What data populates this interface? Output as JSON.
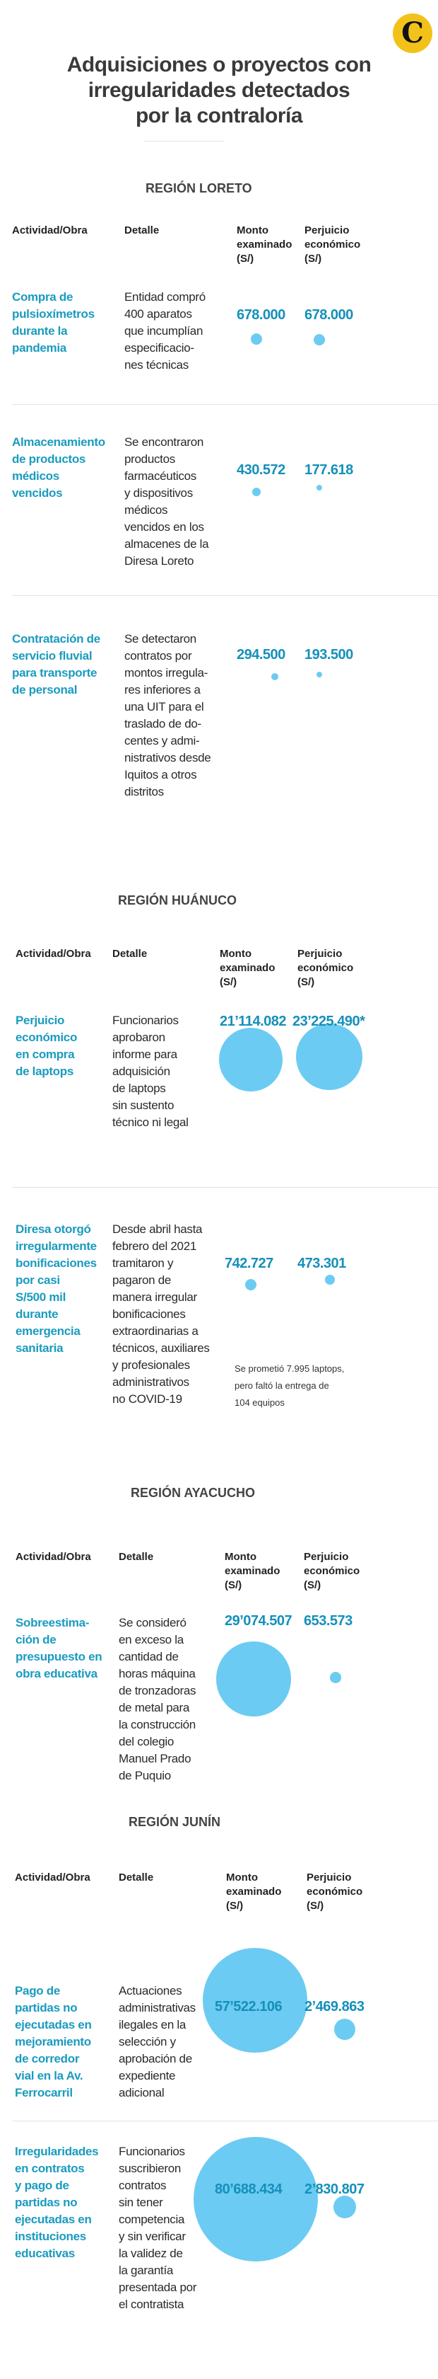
{
  "logo": {
    "letter": "C"
  },
  "title": "Adquisiciones o proyectos con\nirregularidades detectados\npor la contraloría",
  "colors": {
    "activity": "#1a9bbf",
    "value": "#1490ba",
    "bubble": "#6ccbf2",
    "logo": "#f2c21a"
  },
  "chart_data": {
    "type": "bubble-table",
    "title": "Adquisiciones o proyectos con irregularidades detectados por la contraloría",
    "headers": [
      "Actividad/Obra",
      "Detalle",
      "Monto\nexaminado\n(S/)",
      "Perjuicio\neconómico\n(S/)"
    ],
    "sections": [
      {
        "region": "REGIÓN LORETO",
        "rows": [
          {
            "activity": "Compra de\npulsioxímetros\ndurante la\npandemia",
            "detail": "Entidad compró\n400 aparatos\nque incumplían\nespecificacio-\nnes técnicas",
            "monto_label": "678.000",
            "perjuicio_label": "678.000",
            "monto": 678000,
            "perjuicio": 678000
          },
          {
            "activity": "Almacenamiento\nde productos\nmédicos\nvencidos",
            "detail": "Se encontraron\nproductos\nfarmacéuticos\ny dispositivos\nmédicos\nvencidos en los\nalmacenes de la\nDiresa Loreto",
            "monto_label": "430.572",
            "perjuicio_label": "177.618",
            "monto": 430572,
            "perjuicio": 177618
          },
          {
            "activity": "Contratación de\nservicio fluvial\npara transporte\nde personal",
            "detail": "Se detectaron\ncontratos por\nmontos irregula-\nres inferiores a\nuna UIT para el\ntraslado de do-\ncentes y admi-\nnistrativos desde\nIquitos a otros\ndistritos",
            "monto_label": "294.500",
            "perjuicio_label": "193.500",
            "monto": 294500,
            "perjuicio": 193500
          }
        ]
      },
      {
        "region": "REGIÓN HUÁNUCO",
        "rows": [
          {
            "activity": "Perjuicio\neconómico\nen compra\nde laptops",
            "detail": "Funcionarios\naprobaron\ninforme para\nadquisición\nde laptops\nsin sustento\ntécnico ni legal",
            "monto_label": "21’114.082",
            "perjuicio_label": "23’225.490*",
            "monto": 21114082,
            "perjuicio": 23225490
          },
          {
            "activity": "Diresa otorgó\nirregularmente\nbonificaciones\npor casi\nS/500 mil\ndurante\nemergencia\nsanitaria",
            "detail": "Desde abril hasta\nfebrero del 2021\ntramitaron y\npagaron de\nmanera irregular\nbonificaciones\nextraordinarias a\ntécnicos, auxiliares\ny profesionales\nadministrativos\nno COVID-19",
            "monto_label": "742.727",
            "perjuicio_label": "473.301",
            "monto": 742727,
            "perjuicio": 473301
          }
        ],
        "note": "Se prometió 7.995 laptops,\npero faltó la entrega de\n104 equipos"
      },
      {
        "region": "REGIÓN AYACUCHO",
        "rows": [
          {
            "activity": "Sobreestima-\nción de\npresupuesto en\nobra educativa",
            "detail": "Se consideró\nen exceso la\ncantidad de\nhoras máquina\nde tronzadoras\nde metal para\nla construcción\ndel colegio\nManuel Prado\nde Puquio",
            "monto_label": "29’074.507",
            "perjuicio_label": "653.573",
            "monto": 29074507,
            "perjuicio": 653573
          }
        ]
      },
      {
        "region": "REGIÓN JUNÍN",
        "rows": [
          {
            "activity": "Pago de\npartidas no\nejecutadas en\nmejoramiento\nde corredor\nvial en la Av.\nFerrocarril",
            "detail": "Actuaciones\nadministrativas\nilegales en la\nselección y\naprobación de\nexpediente\nadicional",
            "monto_label": "57’522.106",
            "perjuicio_label": "2’469.863",
            "monto": 57522106,
            "perjuicio": 2469863
          },
          {
            "activity": "Irregularidades\nen contratos\ny pago de\npartidas no\nejecutadas en\ninstituciones\neducativas",
            "detail": "Funcionarios\nsuscribieron\ncontratos\nsin tener\ncompetencia\ny sin verificar\nla validez de\nla garantía\npresentada por\nel contratista",
            "monto_label": "80’688.434",
            "perjuicio_label": "2’830.807",
            "monto": 80688434,
            "perjuicio": 2830807
          }
        ]
      }
    ]
  }
}
